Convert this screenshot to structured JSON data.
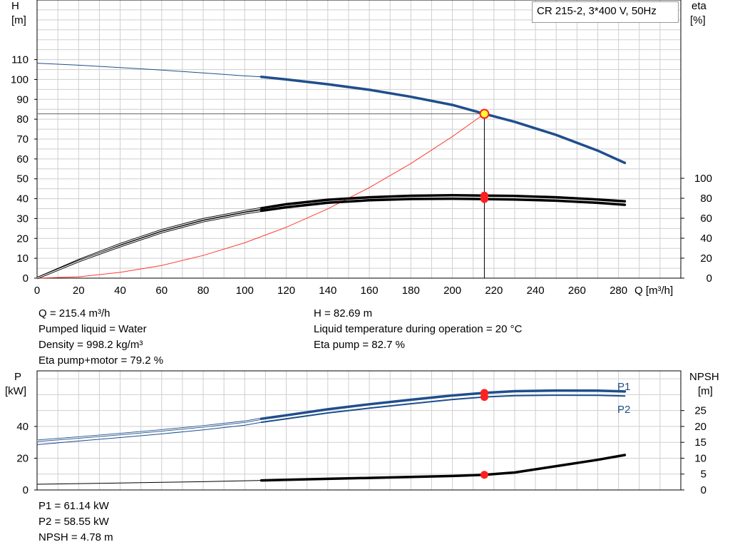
{
  "title": "CR 215-2, 3*400 V, 50Hz",
  "top_info_left": [
    "Q = 215.4 m³/h",
    "Pumped liquid = Water",
    "Density = 998.2 kg/m³",
    "Eta pump+motor = 79.2 %"
  ],
  "top_info_right": [
    "H = 82.69 m",
    "Liquid temperature during operation = 20 °C",
    "Eta pump = 82.7 %"
  ],
  "bottom_info": [
    "P1 = 61.14 kW",
    "P2 = 58.55 kW",
    "NPSH = 4.78 m"
  ],
  "colors": {
    "head": "#1f4e8c",
    "power": "#1f4e8c",
    "efficiency": "#000000",
    "system": "#ff3b30",
    "point": "#ff2020",
    "point_yellow": "#ffff33",
    "grid": "#cfcfcf"
  },
  "chart_data": [
    {
      "type": "line",
      "name": "head-efficiency",
      "xlabel": "Q [m³/h]",
      "ylabel_left": "H",
      "ylabel_left_unit": "[m]",
      "ylabel_right": "eta",
      "ylabel_right_unit": "[%]",
      "x_ticks": [
        0,
        20,
        40,
        60,
        80,
        100,
        120,
        140,
        160,
        180,
        200,
        220,
        240,
        260,
        280
      ],
      "y_ticks": [
        0,
        10,
        20,
        30,
        40,
        50,
        60,
        70,
        80,
        90,
        100,
        110
      ],
      "y_right_ticks": [
        0,
        20,
        40,
        60,
        80,
        100
      ],
      "xlim": [
        0,
        310
      ],
      "ylim": [
        0,
        140
      ],
      "y_right_lim": [
        0,
        100
      ],
      "grid": true,
      "series": [
        {
          "id": "H",
          "axis": "left",
          "x": [
            0,
            20,
            40,
            60,
            80,
            100,
            108,
            120,
            140,
            160,
            180,
            200,
            215.4,
            230,
            250,
            270,
            283
          ],
          "y": [
            108.2,
            107.2,
            106.0,
            104.7,
            103.3,
            101.8,
            101.3,
            100.0,
            97.6,
            94.8,
            91.3,
            87.2,
            82.69,
            78.7,
            72.1,
            64.2,
            58.0
          ]
        },
        {
          "id": "eta-pump",
          "axis": "right",
          "x": [
            0,
            20,
            40,
            60,
            80,
            100,
            108,
            120,
            140,
            160,
            180,
            200,
            215.4,
            230,
            250,
            270,
            283
          ],
          "y": [
            0,
            18,
            34,
            48,
            59,
            67,
            70,
            74,
            78.5,
            81,
            82.5,
            83,
            82.7,
            82.3,
            81,
            78.8,
            77
          ]
        },
        {
          "id": "eta-pump-motor",
          "axis": "right",
          "x": [
            0,
            20,
            40,
            60,
            80,
            100,
            108,
            120,
            140,
            160,
            180,
            200,
            215.4,
            230,
            250,
            270,
            283
          ],
          "y": [
            0,
            17,
            32,
            46,
            57,
            65,
            67.5,
            71,
            75.5,
            78,
            79.3,
            79.6,
            79.2,
            78.8,
            77.6,
            75.4,
            73.5
          ]
        },
        {
          "id": "system-curve",
          "axis": "left",
          "x": [
            0,
            20,
            40,
            60,
            80,
            100,
            120,
            140,
            160,
            180,
            200,
            215.4
          ],
          "y": [
            0,
            0.7,
            2.9,
            6.4,
            11.4,
            17.8,
            25.6,
            34.9,
            45.6,
            57.7,
            71.3,
            82.69
          ]
        }
      ],
      "operating_point": {
        "q": 215.4,
        "h": 82.69,
        "eta_pump": 82.7,
        "eta_total": 79.2
      }
    },
    {
      "type": "line",
      "name": "power-npsh",
      "ylabel_left": "P",
      "ylabel_left_unit": "[kW]",
      "ylabel_right": "NPSH",
      "ylabel_right_unit": "[m]",
      "y_ticks": [
        0,
        20,
        40
      ],
      "y_right_ticks": [
        0,
        5,
        10,
        15,
        20,
        25
      ],
      "ylim": [
        0,
        75
      ],
      "y_right_lim": [
        0,
        37.5
      ],
      "grid": true,
      "series": [
        {
          "id": "P1",
          "label": "P1",
          "axis": "left",
          "x": [
            0,
            20,
            40,
            60,
            80,
            100,
            108,
            120,
            140,
            160,
            180,
            200,
            215.4,
            230,
            250,
            270,
            283
          ],
          "y": [
            31,
            33,
            35.2,
            37.5,
            40,
            43,
            44.8,
            47,
            50.8,
            54,
            56.8,
            59.5,
            61.14,
            62.2,
            62.6,
            62.5,
            62
          ]
        },
        {
          "id": "P2",
          "label": "P2",
          "axis": "left",
          "x": [
            0,
            20,
            40,
            60,
            80,
            100,
            108,
            120,
            140,
            160,
            180,
            200,
            215.4,
            230,
            250,
            270,
            283
          ],
          "y": [
            28.5,
            30.8,
            33,
            35.3,
            37.8,
            40.8,
            42.6,
            44.8,
            48.5,
            51.5,
            54.3,
            57,
            58.55,
            59.4,
            59.7,
            59.6,
            59.2
          ]
        },
        {
          "id": "NPSH",
          "axis": "right",
          "x": [
            0,
            20,
            40,
            60,
            80,
            100,
            108,
            120,
            140,
            160,
            180,
            200,
            215.4,
            230,
            250,
            270,
            283
          ],
          "y": [
            1.8,
            2.0,
            2.2,
            2.4,
            2.6,
            2.9,
            3.0,
            3.2,
            3.5,
            3.8,
            4.1,
            4.4,
            4.78,
            5.5,
            7.5,
            9.5,
            11
          ]
        }
      ],
      "operating_point": {
        "q": 215.4,
        "p1": 61.14,
        "p2": 58.55,
        "npsh": 4.78
      }
    }
  ]
}
